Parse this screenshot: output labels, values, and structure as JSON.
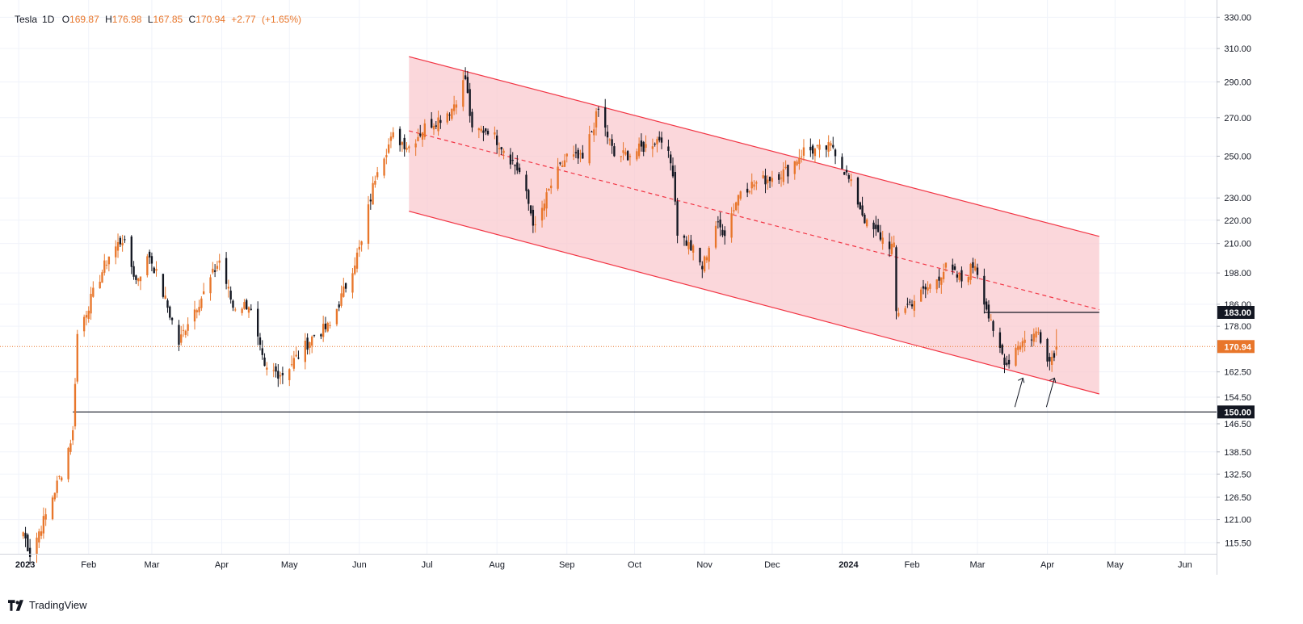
{
  "legend": {
    "symbol": "Tesla",
    "interval": "1D",
    "open_label": "O",
    "open": "169.87",
    "high_label": "H",
    "high": "176.98",
    "low_label": "L",
    "low": "167.85",
    "close_label": "C",
    "close": "170.94",
    "change": "+2.77",
    "change_pct": "(+1.65%)"
  },
  "brand": {
    "name": "TradingView"
  },
  "colors": {
    "up": "#e8762b",
    "down": "#131722",
    "channel_fill": "#f9c9cf",
    "channel_line": "#f23645",
    "last_price": "#e8762b"
  },
  "chart_data": {
    "type": "candlestick",
    "title": "Tesla, 1D",
    "price_scale": "log",
    "ylim": [
      113,
      335
    ],
    "y_ticks": [
      330,
      310,
      290,
      270,
      250,
      230,
      220,
      210,
      198,
      186,
      178,
      162.5,
      154.5,
      146.5,
      138.5,
      132.5,
      126.5,
      121,
      115.5
    ],
    "x_ticks": [
      "2023",
      "Feb",
      "Mar",
      "Apr",
      "May",
      "Jun",
      "Jul",
      "Aug",
      "Sep",
      "Oct",
      "Nov",
      "Dec",
      "2024",
      "Feb",
      "Mar",
      "Apr",
      "May",
      "Jun"
    ],
    "x_tick_dates": [
      "2023-01-01",
      "2023-02-01",
      "2023-03-01",
      "2023-04-01",
      "2023-05-01",
      "2023-06-01",
      "2023-07-01",
      "2023-08-01",
      "2023-09-01",
      "2023-10-01",
      "2023-11-01",
      "2023-12-01",
      "2024-01-01",
      "2024-02-01",
      "2024-03-01",
      "2024-04-01",
      "2024-05-01",
      "2024-06-01"
    ],
    "x_range": [
      "2022-12-28",
      "2024-06-15"
    ],
    "waypoints": [
      [
        "2023-01-03",
        118
      ],
      [
        "2023-01-06",
        113
      ],
      [
        "2023-01-13",
        122
      ],
      [
        "2023-01-20",
        133
      ],
      [
        "2023-01-25",
        144
      ],
      [
        "2023-01-26",
        160
      ],
      [
        "2023-01-27",
        175
      ],
      [
        "2023-02-03",
        190
      ],
      [
        "2023-02-10",
        205
      ],
      [
        "2023-02-16",
        212
      ],
      [
        "2023-02-22",
        195
      ],
      [
        "2023-02-28",
        205
      ],
      [
        "2023-03-06",
        190
      ],
      [
        "2023-03-13",
        172
      ],
      [
        "2023-03-17",
        180
      ],
      [
        "2023-03-24",
        190
      ],
      [
        "2023-03-31",
        203
      ],
      [
        "2023-04-06",
        185
      ],
      [
        "2023-04-13",
        186
      ],
      [
        "2023-04-20",
        163
      ],
      [
        "2023-04-28",
        162
      ],
      [
        "2023-05-05",
        168
      ],
      [
        "2023-05-12",
        175
      ],
      [
        "2023-05-19",
        178
      ],
      [
        "2023-05-26",
        193
      ],
      [
        "2023-06-02",
        210
      ],
      [
        "2023-06-09",
        245
      ],
      [
        "2023-06-16",
        260
      ],
      [
        "2023-06-23",
        255
      ],
      [
        "2023-06-30",
        265
      ],
      [
        "2023-07-07",
        270
      ],
      [
        "2023-07-12",
        275
      ],
      [
        "2023-07-18",
        292
      ],
      [
        "2023-07-21",
        262
      ],
      [
        "2023-07-28",
        264
      ],
      [
        "2023-08-04",
        254
      ],
      [
        "2023-08-11",
        242
      ],
      [
        "2023-08-18",
        216
      ],
      [
        "2023-08-25",
        236
      ],
      [
        "2023-09-01",
        250
      ],
      [
        "2023-09-08",
        248
      ],
      [
        "2023-09-15",
        274
      ],
      [
        "2023-09-22",
        250
      ],
      [
        "2023-09-29",
        251
      ],
      [
        "2023-10-06",
        255
      ],
      [
        "2023-10-13",
        260
      ],
      [
        "2023-10-18",
        243
      ],
      [
        "2023-10-20",
        215
      ],
      [
        "2023-10-27",
        207
      ],
      [
        "2023-10-31",
        200
      ],
      [
        "2023-11-06",
        218
      ],
      [
        "2023-11-10",
        215
      ],
      [
        "2023-11-17",
        234
      ],
      [
        "2023-11-24",
        237
      ],
      [
        "2023-12-01",
        240
      ],
      [
        "2023-12-08",
        243
      ],
      [
        "2023-12-15",
        253
      ],
      [
        "2023-12-22",
        253
      ],
      [
        "2023-12-28",
        255
      ],
      [
        "2024-01-05",
        236
      ],
      [
        "2024-01-12",
        218
      ],
      [
        "2024-01-19",
        212
      ],
      [
        "2024-01-24",
        208
      ],
      [
        "2024-01-25",
        183
      ],
      [
        "2024-02-01",
        187
      ],
      [
        "2024-02-09",
        193
      ],
      [
        "2024-02-16",
        200
      ],
      [
        "2024-02-23",
        195
      ],
      [
        "2024-02-29",
        202
      ],
      [
        "2024-03-04",
        188
      ],
      [
        "2024-03-08",
        175
      ],
      [
        "2024-03-14",
        165
      ],
      [
        "2024-03-19",
        172
      ],
      [
        "2024-03-22",
        173
      ],
      [
        "2024-03-28",
        176
      ],
      [
        "2024-04-02",
        166
      ],
      [
        "2024-04-05",
        170.94
      ]
    ],
    "last_price": 170.94,
    "horizontal_levels": [
      {
        "value": 183.0,
        "label": "183.00",
        "from": "2024-03-04",
        "to": "2024-04-24"
      },
      {
        "value": 150.0,
        "label": "150.00",
        "from": "2023-01-25",
        "to": "2024-06-15"
      }
    ],
    "channel": {
      "start_date": "2023-06-23",
      "end_date": "2024-04-24",
      "upper": [
        305,
        213
      ],
      "middle": [
        263,
        184
      ],
      "lower": [
        224,
        155.5
      ]
    },
    "annotations": [
      {
        "type": "arrow",
        "points_to": "2024-03-19",
        "value": 160
      },
      {
        "type": "arrow",
        "points_to": "2024-04-02",
        "value": 160
      }
    ]
  }
}
